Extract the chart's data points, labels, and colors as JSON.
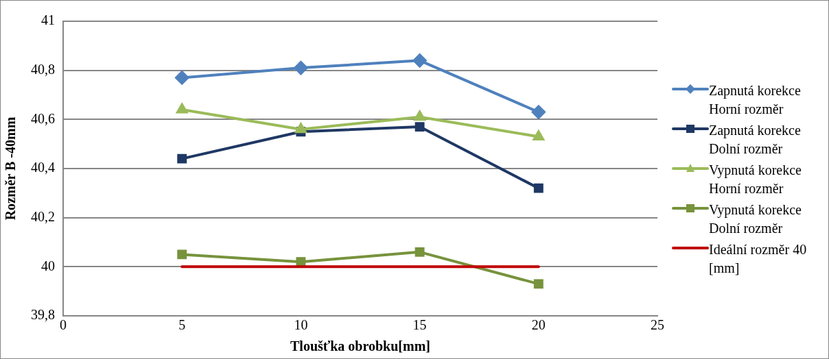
{
  "chart_data": {
    "type": "line",
    "xlabel": "Tloušťka obrobku[mm]",
    "ylabel": "Rozměr B -40mm",
    "x": [
      5,
      10,
      15,
      20
    ],
    "series": [
      {
        "name": "Zapnutá korekce Horní rozměr",
        "color": "#4f81bd",
        "marker": "diamond",
        "values": [
          40.77,
          40.81,
          40.84,
          40.63
        ]
      },
      {
        "name": "Zapnutá korekce Dolní rozměr",
        "color": "#1f3864",
        "marker": "square",
        "values": [
          40.44,
          40.55,
          40.57,
          40.32
        ]
      },
      {
        "name": "Vypnutá korekce Horní rozměr",
        "color": "#9bbb59",
        "marker": "triangle",
        "values": [
          40.64,
          40.56,
          40.61,
          40.53
        ]
      },
      {
        "name": "Vypnutá korekce Dolní rozměr",
        "color": "#77933c",
        "marker": "square",
        "values": [
          40.05,
          40.02,
          40.06,
          39.93
        ]
      },
      {
        "name": "Ideální rozměr 40 [mm]",
        "color": "#c00000",
        "marker": "none",
        "values": [
          40,
          40,
          40,
          40
        ]
      }
    ],
    "xlim": [
      0,
      25
    ],
    "xticks": [
      0,
      5,
      10,
      15,
      20,
      25
    ],
    "ylim": [
      39.8,
      41
    ],
    "yticks": [
      {
        "value": 39.8,
        "label": "39,8"
      },
      {
        "value": 40,
        "label": "40"
      },
      {
        "value": 40.2,
        "label": "40,2"
      },
      {
        "value": 40.4,
        "label": "40,4"
      },
      {
        "value": 40.6,
        "label": "40,6"
      },
      {
        "value": 40.8,
        "label": "40,8"
      },
      {
        "value": 41,
        "label": "41"
      }
    ],
    "grid": "y",
    "legend": "right",
    "line_style": "solid"
  }
}
